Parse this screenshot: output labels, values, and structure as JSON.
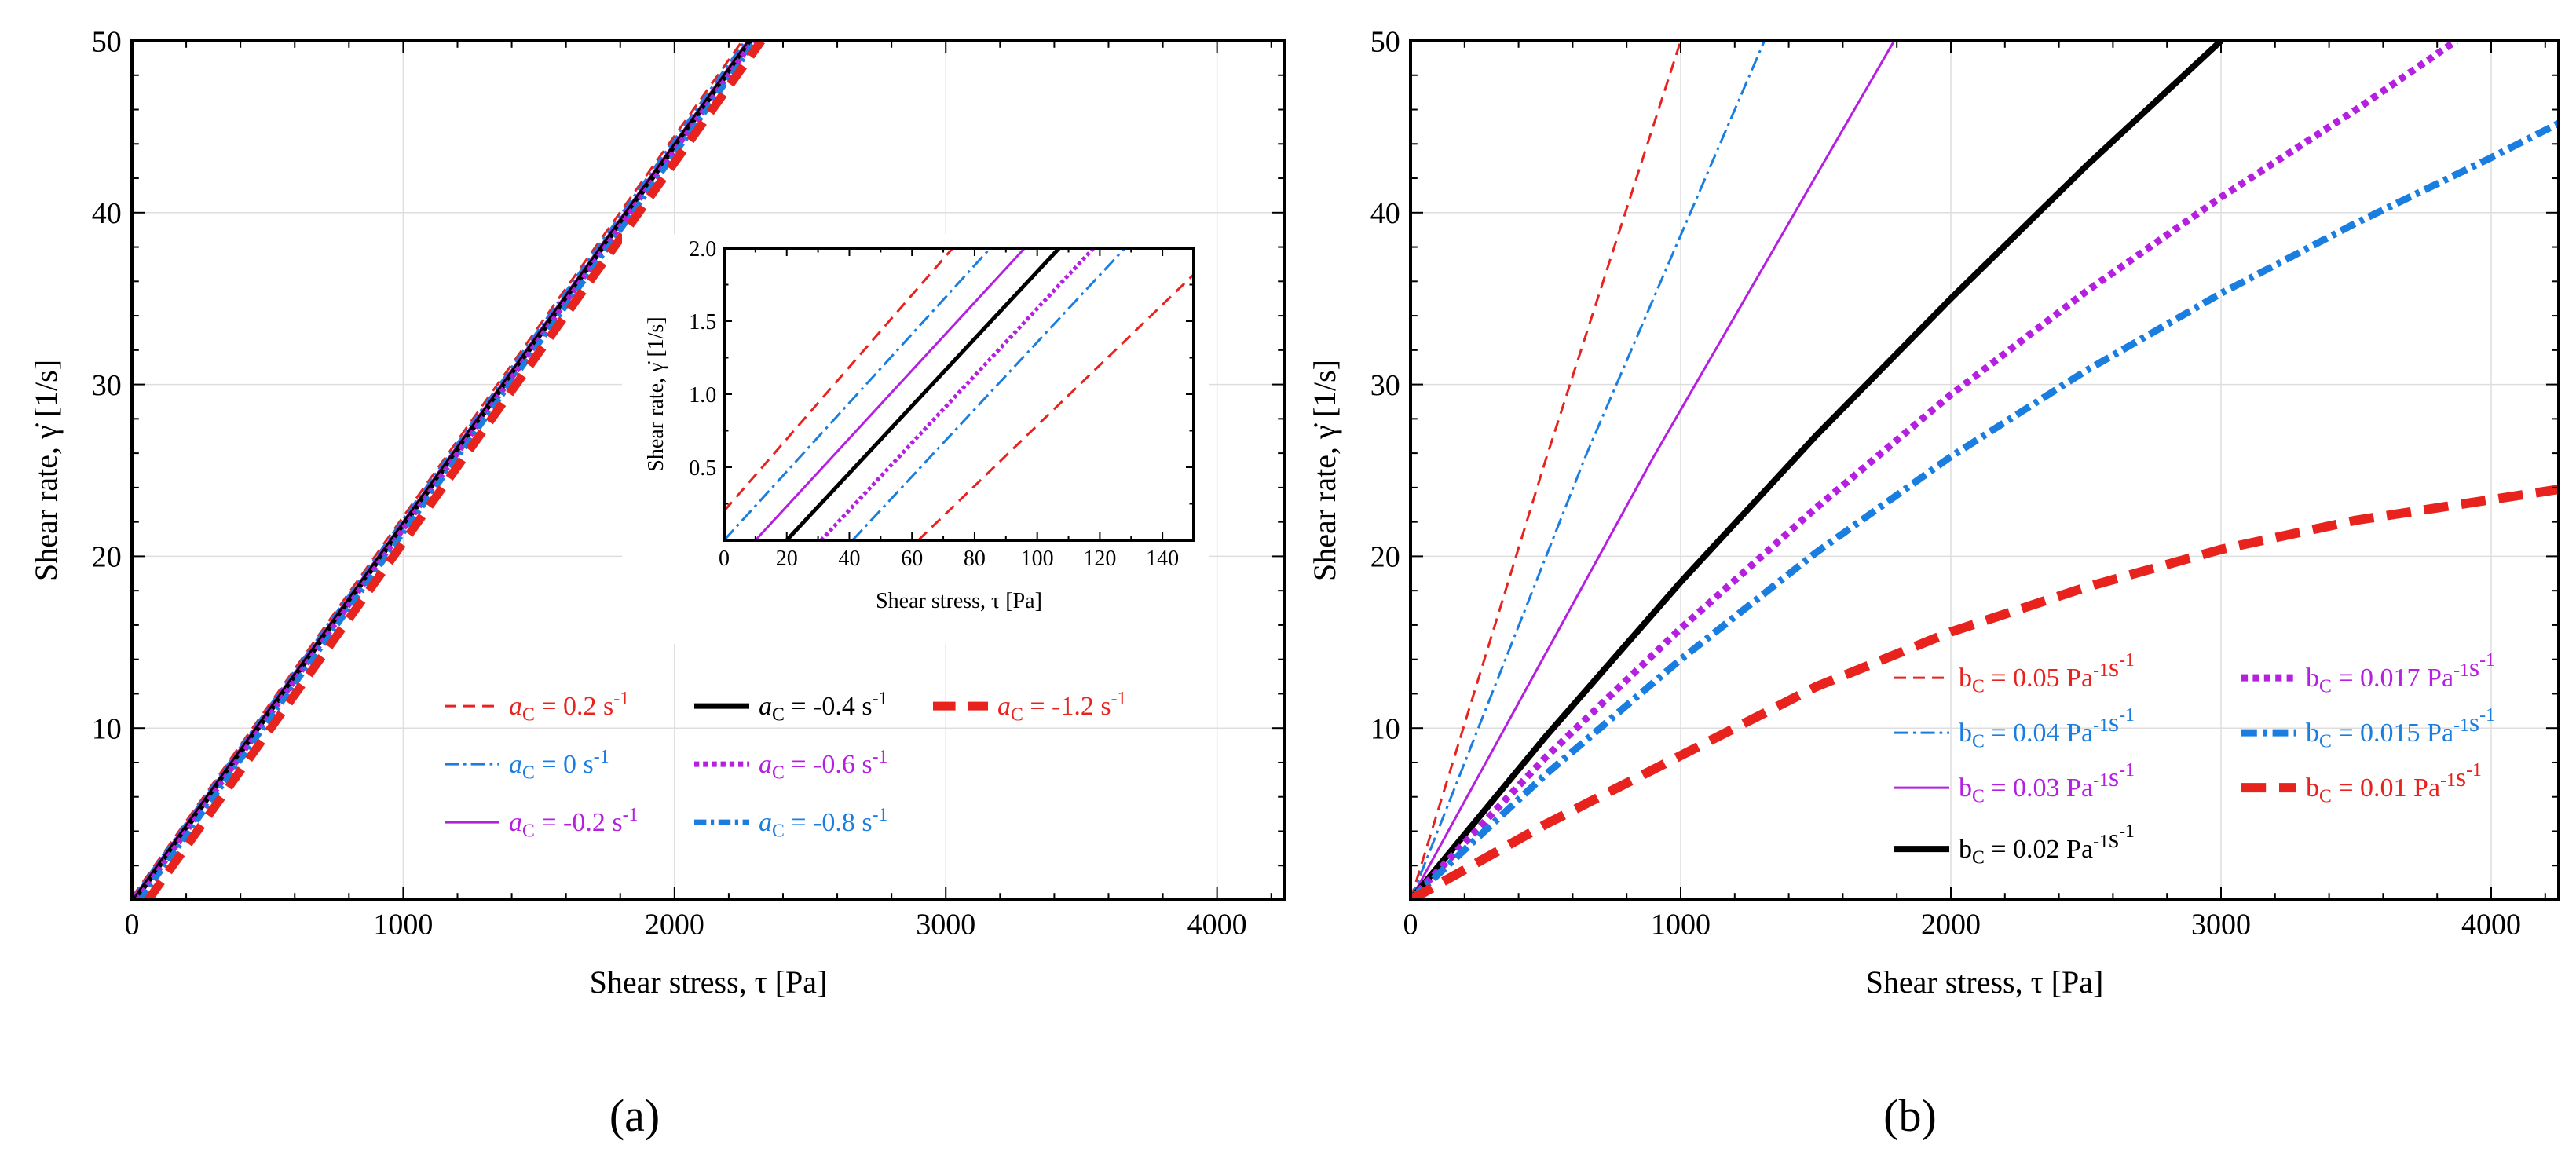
{
  "figure": {
    "panels": [
      {
        "label": "(a)"
      },
      {
        "label": "(b)"
      }
    ]
  },
  "chart_data": [
    {
      "type": "line",
      "xlabel": "Shear stress, τ [Pa]",
      "ylabel": "Shear rate, γ̇ [1/s]",
      "xlim": [
        0,
        4250
      ],
      "ylim": [
        0,
        50
      ],
      "xticks": [
        0,
        1000,
        2000,
        3000,
        4000
      ],
      "yticks": [
        10,
        20,
        30,
        40,
        50
      ],
      "grid": true,
      "legend_position": "bottom-right",
      "series": [
        {
          "name": "a_C = 0.2 s⁻¹",
          "label_main": "aC = 0.2 s",
          "sup": "-1",
          "color": "#e8231e",
          "style": "dashed-fine",
          "stroke": 3,
          "x": [
            0,
            2250
          ],
          "y": [
            0.15,
            50
          ]
        },
        {
          "name": "a_C = 0 s⁻¹",
          "label_main": "aC = 0 s",
          "sup": "-1",
          "color": "#1a7ee0",
          "style": "dashdot",
          "stroke": 3,
          "x": [
            0,
            2260
          ],
          "y": [
            0.08,
            50
          ]
        },
        {
          "name": "a_C = -0.2 s⁻¹",
          "label_main": "aC = -0.2 s",
          "sup": "-1",
          "color": "#b51fe0",
          "style": "solid",
          "stroke": 3,
          "x": [
            0,
            2270
          ],
          "y": [
            0,
            50
          ]
        },
        {
          "name": "a_C = -0.4 s⁻¹",
          "label_main": "aC = -0.4 s",
          "sup": "-1",
          "color": "#000000",
          "style": "solid",
          "stroke": 7,
          "x": [
            10,
            2280
          ],
          "y": [
            0,
            50
          ]
        },
        {
          "name": "a_C = -0.6 s⁻¹",
          "label_main": "aC = -0.6 s",
          "sup": "-1",
          "color": "#b51fe0",
          "style": "dotted",
          "stroke": 7,
          "x": [
            20,
            2290
          ],
          "y": [
            0,
            50
          ]
        },
        {
          "name": "a_C = -0.8 s⁻¹",
          "label_main": "aC = -0.8 s",
          "sup": "-1",
          "color": "#1a7ee0",
          "style": "dashdot-thick",
          "stroke": 7,
          "x": [
            30,
            2300
          ],
          "y": [
            0,
            50
          ]
        },
        {
          "name": "a_C = -1.2 s⁻¹",
          "label_main": "aC = -1.2 s",
          "sup": "-1",
          "color": "#e8231e",
          "style": "dashed-thick",
          "stroke": 11,
          "x": [
            60,
            2320
          ],
          "y": [
            0,
            50
          ]
        }
      ],
      "inset": {
        "xlabel": "Shear stress, τ [Pa]",
        "ylabel": "Shear rate, γ̇ [1/s]",
        "xlim": [
          0,
          150
        ],
        "ylim": [
          0,
          2.0
        ],
        "xticks": [
          0,
          20,
          40,
          60,
          80,
          100,
          120,
          140
        ],
        "yticks": [
          0.5,
          1.0,
          1.5,
          2.0
        ],
        "series": [
          {
            "color": "#e8231e",
            "style": "dashed-fine",
            "stroke": 3,
            "x": [
              0,
              73
            ],
            "y": [
              0.2,
              2.0
            ]
          },
          {
            "color": "#1a7ee0",
            "style": "dashdot",
            "stroke": 3,
            "x": [
              0,
              85
            ],
            "y": [
              0.0,
              2.0
            ]
          },
          {
            "color": "#b51fe0",
            "style": "solid",
            "stroke": 3,
            "x": [
              10,
              96
            ],
            "y": [
              0.0,
              2.0
            ]
          },
          {
            "color": "#000000",
            "style": "solid",
            "stroke": 5,
            "x": [
              20,
              107
            ],
            "y": [
              0.0,
              2.0
            ]
          },
          {
            "color": "#b51fe0",
            "style": "dotted",
            "stroke": 5,
            "x": [
              31,
              118
            ],
            "y": [
              0.0,
              2.0
            ]
          },
          {
            "color": "#1a7ee0",
            "style": "dashdot",
            "stroke": 3,
            "x": [
              41,
              128
            ],
            "y": [
              0.0,
              2.0
            ]
          },
          {
            "color": "#e8231e",
            "style": "dashed-fine",
            "stroke": 3,
            "x": [
              62,
              150
            ],
            "y": [
              0.0,
              1.82
            ]
          }
        ]
      }
    },
    {
      "type": "line",
      "xlabel": "Shear stress, τ [Pa]",
      "ylabel": "Shear rate, γ̇ [1/s]",
      "xlim": [
        0,
        4250
      ],
      "ylim": [
        0,
        50
      ],
      "xticks": [
        0,
        1000,
        2000,
        3000,
        4000
      ],
      "yticks": [
        10,
        20,
        30,
        40,
        50
      ],
      "grid": true,
      "legend_position": "bottom-right",
      "series": [
        {
          "name": "b_C = 0.05 Pa⁻¹s⁻¹",
          "label_main": "bC = 0.05 Pa",
          "color": "#e8231e",
          "style": "dashed-fine",
          "stroke": 3,
          "x": [
            0,
            500,
            1000
          ],
          "y": [
            0,
            25.6,
            50
          ]
        },
        {
          "name": "b_C = 0.04 Pa⁻¹s⁻¹",
          "label_main": "bC = 0.04 Pa",
          "color": "#1a7ee0",
          "style": "dashdot",
          "stroke": 3,
          "x": [
            0,
            650,
            1310
          ],
          "y": [
            0,
            25.9,
            50
          ]
        },
        {
          "name": "b_C = 0.03 Pa⁻¹s⁻¹",
          "label_main": "bC = 0.03 Pa",
          "color": "#b51fe0",
          "style": "solid",
          "stroke": 3,
          "x": [
            0,
            900,
            1790
          ],
          "y": [
            0,
            25.8,
            50
          ]
        },
        {
          "name": "b_C = 0.02 Pa⁻¹s⁻¹",
          "label_main": "bC = 0.02 Pa",
          "color": "#000000",
          "style": "solid",
          "stroke": 8,
          "x": [
            0,
            500,
            1000,
            1500,
            2000,
            2500,
            3000
          ],
          "y": [
            0,
            9.5,
            18.5,
            27,
            35,
            42.7,
            50
          ]
        },
        {
          "name": "b_C = 0.017 Pa⁻¹s⁻¹",
          "label_main": "bC = 0.017 Pa",
          "color": "#b51fe0",
          "style": "dotted",
          "stroke": 9,
          "x": [
            0,
            500,
            1000,
            1500,
            2000,
            2500,
            3000,
            3500,
            3870
          ],
          "y": [
            0,
            8.3,
            15.8,
            22.8,
            29.4,
            35.4,
            40.9,
            46,
            50
          ]
        },
        {
          "name": "b_C = 0.015 Pa⁻¹s⁻¹",
          "label_main": "bC = 0.015 Pa",
          "color": "#1a7ee0",
          "style": "dashdot-thick",
          "stroke": 9,
          "x": [
            0,
            500,
            1000,
            1500,
            2000,
            2500,
            3000,
            3500,
            4000,
            4250
          ],
          "y": [
            0,
            7.3,
            14,
            20.2,
            25.8,
            30.8,
            35.3,
            39.4,
            43.2,
            45.2
          ]
        },
        {
          "name": "b_C = 0.01 Pa⁻¹s⁻¹",
          "label_main": "bC = 0.01 Pa",
          "color": "#e8231e",
          "style": "dashed-thick",
          "stroke": 12,
          "x": [
            0,
            500,
            1000,
            1500,
            2000,
            2500,
            3000,
            3500,
            4000,
            4250
          ],
          "y": [
            0,
            4.4,
            8.4,
            12.4,
            15.6,
            18.2,
            20.4,
            22.1,
            23.3,
            23.9
          ]
        }
      ]
    }
  ]
}
